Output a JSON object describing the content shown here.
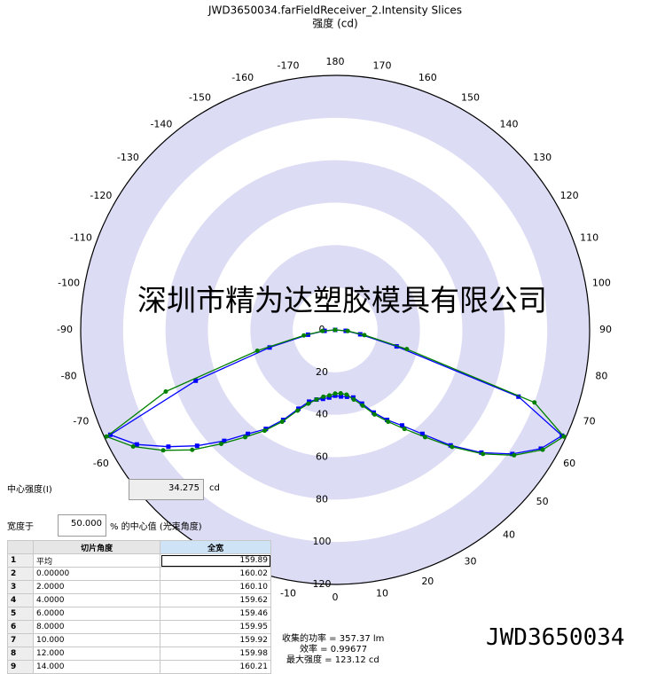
{
  "chart_data": {
    "type": "polar",
    "title": "JWD3650034.farFieldReceiver_2.Intensity Slices",
    "subtitle": "强度 (cd)",
    "rlim": [
      0,
      120
    ],
    "rticks": [
      0,
      20,
      40,
      60,
      80,
      100,
      120
    ],
    "thetaticks": [
      -170,
      -160,
      -150,
      -140,
      -130,
      -120,
      -110,
      -100,
      -90,
      -80,
      -70,
      -60,
      -10,
      0,
      10,
      20,
      30,
      40,
      50,
      60,
      70,
      80,
      90,
      100,
      110,
      120,
      130,
      140,
      150,
      160,
      170,
      180
    ],
    "theta": [
      -90,
      -85,
      -80,
      -75,
      -70,
      -65,
      -60,
      -55,
      -50,
      -45,
      -40,
      -35,
      -30,
      -25,
      -20,
      -15,
      -10,
      -5,
      0,
      5,
      10,
      15,
      20,
      25,
      30,
      35,
      40,
      45,
      50,
      55,
      60,
      65,
      70,
      75,
      80,
      85,
      90
    ],
    "series": [
      {
        "color": "#0000ff",
        "marker": "square",
        "values": [
          0,
          5,
          13,
          32,
          70,
          117,
          108,
          96,
          85,
          74,
          64,
          57,
          49,
          41,
          36,
          34,
          33,
          32,
          31,
          31.5,
          32,
          33,
          37,
          43,
          49,
          55,
          64,
          77,
          90,
          102,
          112,
          118,
          92,
          30,
          12,
          5,
          0
        ]
      },
      {
        "color": "#008000",
        "marker": "circle",
        "values": [
          0,
          6,
          15,
          38,
          85,
          119,
          110,
          99,
          88,
          76,
          66,
          58,
          50,
          42,
          37,
          34,
          32,
          31,
          30,
          30,
          31,
          34,
          38,
          44,
          50,
          57,
          66,
          78,
          91,
          103,
          113,
          119,
          100,
          35,
          14,
          6,
          0
        ]
      }
    ]
  },
  "watermark": "深圳市精为达塑胶模具有限公司",
  "footer_id": "JWD3650034",
  "panel": {
    "center_label": "中心强度(I)",
    "center_value": "34.275",
    "center_unit": "cd",
    "width_label": "宽度于",
    "width_value": "50.000",
    "width_suffix": "% 的中心值 (光束角度)"
  },
  "table": {
    "headers": [
      "切片角度",
      "全宽"
    ],
    "rows": [
      [
        "1",
        "平均",
        "159.89"
      ],
      [
        "2",
        "0.00000",
        "160.02"
      ],
      [
        "3",
        "2.0000",
        "160.10"
      ],
      [
        "4",
        "4.0000",
        "159.62"
      ],
      [
        "5",
        "6.0000",
        "159.46"
      ],
      [
        "6",
        "8.0000",
        "159.95"
      ],
      [
        "7",
        "10.000",
        "159.92"
      ],
      [
        "8",
        "12.000",
        "159.98"
      ],
      [
        "9",
        "14.000",
        "160.21"
      ]
    ]
  },
  "stats": [
    "收集的功率 = 357.37 lm",
    "效率 = 0.99677",
    "最大强度 = 123.12 cd"
  ]
}
